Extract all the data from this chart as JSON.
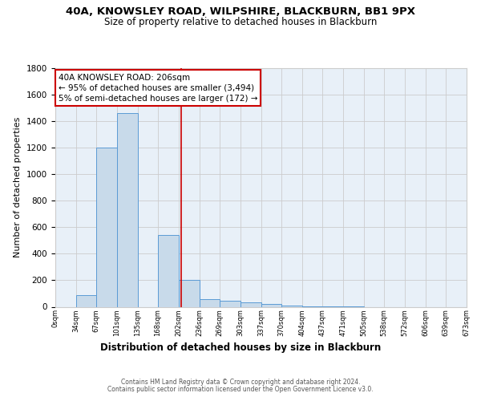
{
  "title1": "40A, KNOWSLEY ROAD, WILPSHIRE, BLACKBURN, BB1 9PX",
  "title2": "Size of property relative to detached houses in Blackburn",
  "xlabel": "Distribution of detached houses by size in Blackburn",
  "ylabel": "Number of detached properties",
  "footer1": "Contains HM Land Registry data © Crown copyright and database right 2024.",
  "footer2": "Contains public sector information licensed under the Open Government Licence v3.0.",
  "annotation_line1": "40A KNOWSLEY ROAD: 206sqm",
  "annotation_line2": "← 95% of detached houses are smaller (3,494)",
  "annotation_line3": "5% of semi-detached houses are larger (172) →",
  "property_size": 206,
  "bin_edges": [
    0,
    34,
    67,
    101,
    135,
    168,
    202,
    236,
    269,
    303,
    337,
    370,
    404,
    437,
    471,
    505,
    538,
    572,
    606,
    639,
    673
  ],
  "bar_heights": [
    0,
    90,
    1200,
    1460,
    0,
    540,
    205,
    60,
    45,
    35,
    20,
    10,
    5,
    2,
    1,
    0,
    0,
    0,
    0,
    0
  ],
  "bar_color": "#c8daea",
  "bar_edge_color": "#5b9bd5",
  "grid_color": "#cccccc",
  "bg_color": "#e8f0f8",
  "red_line_color": "#cc0000",
  "annotation_box_color": "#cc0000",
  "ylim": [
    0,
    1800
  ],
  "yticks": [
    0,
    200,
    400,
    600,
    800,
    1000,
    1200,
    1400,
    1600,
    1800
  ],
  "xtick_labels": [
    "0sqm",
    "34sqm",
    "67sqm",
    "101sqm",
    "135sqm",
    "168sqm",
    "202sqm",
    "236sqm",
    "269sqm",
    "303sqm",
    "337sqm",
    "370sqm",
    "404sqm",
    "437sqm",
    "471sqm",
    "505sqm",
    "538sqm",
    "572sqm",
    "606sqm",
    "639sqm",
    "673sqm"
  ],
  "title1_fontsize": 9.5,
  "title2_fontsize": 8.5,
  "ylabel_fontsize": 8,
  "xlabel_fontsize": 8.5,
  "footer_fontsize": 5.5,
  "annotation_fontsize": 7.5
}
